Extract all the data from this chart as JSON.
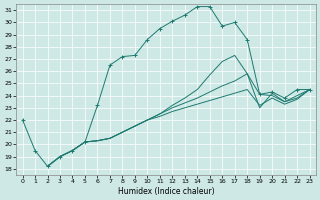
{
  "title": "",
  "xlabel": "Humidex (Indice chaleur)",
  "bg_color": "#cde8e5",
  "line_color": "#1e7a70",
  "grid_color": "#ffffff",
  "ylim": [
    17.5,
    31.5
  ],
  "xlim": [
    -0.5,
    23.5
  ],
  "yticks": [
    18,
    19,
    20,
    21,
    22,
    23,
    24,
    25,
    26,
    27,
    28,
    29,
    30,
    31
  ],
  "xticks": [
    0,
    1,
    2,
    3,
    4,
    5,
    6,
    7,
    8,
    9,
    10,
    11,
    12,
    13,
    14,
    15,
    16,
    17,
    18,
    19,
    20,
    21,
    22,
    23
  ],
  "series": [
    {
      "x": [
        0,
        1,
        2,
        3,
        4,
        5,
        6,
        7,
        8,
        9,
        10,
        11,
        12,
        13,
        14,
        15,
        16,
        17,
        18,
        19,
        20,
        21,
        22,
        23
      ],
      "y": [
        22,
        19.5,
        18.2,
        19,
        19.5,
        20.2,
        23.2,
        26.5,
        27.2,
        27.3,
        28.6,
        29.5,
        30.1,
        30.6,
        31.3,
        31.3,
        29.7,
        30.0,
        28.6,
        24.1,
        24.3,
        23.8,
        24.5,
        24.5
      ],
      "marker": "+"
    },
    {
      "x": [
        2,
        3,
        4,
        5,
        6,
        7,
        8,
        9,
        10,
        11,
        12,
        13,
        14,
        15,
        16,
        17,
        18,
        19,
        20,
        21,
        22,
        23
      ],
      "y": [
        18.2,
        19.0,
        19.5,
        20.2,
        20.3,
        20.5,
        21.0,
        21.5,
        22.0,
        22.5,
        23.2,
        23.8,
        24.5,
        25.7,
        26.8,
        27.3,
        25.8,
        24.1,
        24.0,
        23.5,
        24.0,
        24.5
      ],
      "marker": null
    },
    {
      "x": [
        2,
        3,
        4,
        5,
        6,
        7,
        8,
        9,
        10,
        11,
        12,
        13,
        14,
        15,
        16,
        17,
        18,
        19,
        20,
        21,
        22,
        23
      ],
      "y": [
        18.2,
        19.0,
        19.5,
        20.2,
        20.3,
        20.5,
        21.0,
        21.5,
        22.0,
        22.5,
        23.0,
        23.4,
        23.8,
        24.3,
        24.8,
        25.2,
        25.8,
        23.0,
        24.2,
        23.5,
        23.8,
        24.5
      ],
      "marker": null
    },
    {
      "x": [
        2,
        3,
        4,
        5,
        6,
        7,
        8,
        9,
        10,
        11,
        12,
        13,
        14,
        15,
        16,
        17,
        18,
        19,
        20,
        21,
        22,
        23
      ],
      "y": [
        18.2,
        19.0,
        19.5,
        20.2,
        20.3,
        20.5,
        21.0,
        21.5,
        22.0,
        22.3,
        22.7,
        23.0,
        23.3,
        23.6,
        23.9,
        24.2,
        24.5,
        23.2,
        23.8,
        23.3,
        23.7,
        24.5
      ],
      "marker": null
    }
  ]
}
